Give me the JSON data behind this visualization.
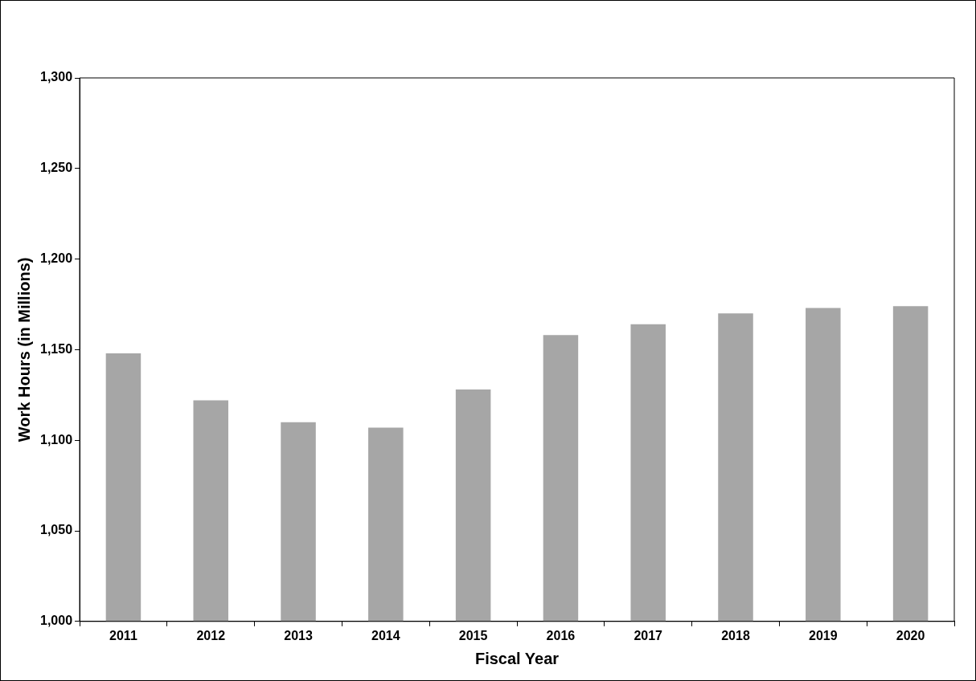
{
  "chart_data": {
    "type": "bar",
    "xlabel": "Fiscal Year",
    "ylabel": "Work Hours (in Millions)",
    "categories": [
      "2011",
      "2012",
      "2013",
      "2014",
      "2015",
      "2016",
      "2017",
      "2018",
      "2019",
      "2020"
    ],
    "values": [
      1148,
      1122,
      1110,
      1107,
      1128,
      1158,
      1164,
      1170,
      1173,
      1174
    ],
    "color": "#a6a6a6",
    "ylim": [
      1000,
      1300
    ],
    "yticks": [
      {
        "value": 1000,
        "label": "1,000"
      },
      {
        "value": 1050,
        "label": "1,050"
      },
      {
        "value": 1100,
        "label": "1,100"
      },
      {
        "value": 1150,
        "label": "1,150"
      },
      {
        "value": 1200,
        "label": "1,200"
      },
      {
        "value": 1250,
        "label": "1,250"
      },
      {
        "value": 1300,
        "label": "1,300"
      }
    ],
    "grid": false,
    "legend": false
  }
}
